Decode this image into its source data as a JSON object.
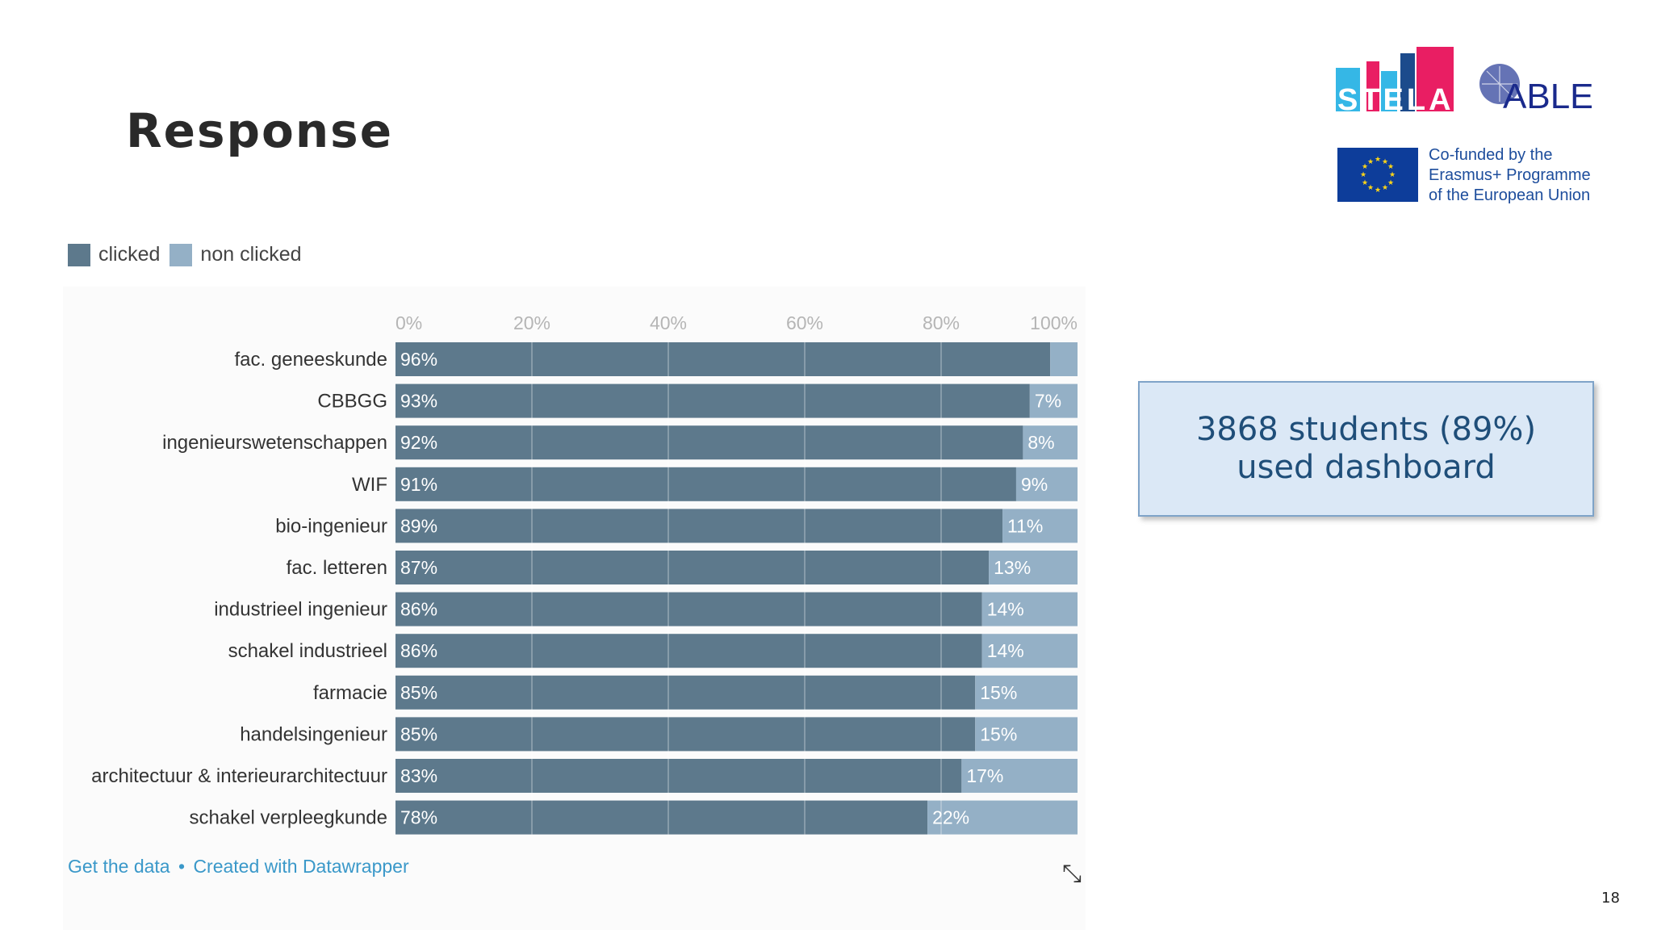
{
  "slide": {
    "title": "Response",
    "page_number": "18"
  },
  "callout": {
    "line1": "3868 students (89%)",
    "line2": "used dashboard"
  },
  "footer": {
    "get_data": "Get the data",
    "separator": "•",
    "created_with": "Created with Datawrapper"
  },
  "logos": {
    "stela": "STELA",
    "able": "ABLE",
    "eu_text": [
      "Co-funded by the",
      "Erasmus+ Programme",
      "of the European Union"
    ]
  },
  "colors": {
    "clicked": "#5d798c",
    "non_clicked": "#94b0c6",
    "link": "#3a98c9",
    "callout_text": "#1f4e79"
  },
  "chart_data": {
    "type": "bar",
    "orientation": "horizontal",
    "stacked": true,
    "legend_position": "top-left",
    "xlim": [
      0,
      100
    ],
    "x_ticks": [
      "0%",
      "20%",
      "40%",
      "60%",
      "80%",
      "100%"
    ],
    "categories": [
      "fac. geneeskunde",
      "CBBGG",
      "ingenieurswetenschappen",
      "WIF",
      "bio-ingenieur",
      "fac. letteren",
      "industrieel ingenieur",
      "schakel industrieel",
      "farmacie",
      "handelsingenieur",
      "architectuur & interieurarchitectuur",
      "schakel verpleegkunde"
    ],
    "series": [
      {
        "name": "clicked",
        "values": [
          96,
          93,
          92,
          91,
          89,
          87,
          86,
          86,
          85,
          85,
          83,
          78
        ],
        "labels": [
          "96%",
          "93%",
          "92%",
          "91%",
          "89%",
          "87%",
          "86%",
          "86%",
          "85%",
          "85%",
          "83%",
          "78%"
        ]
      },
      {
        "name": "non clicked",
        "values": [
          4,
          7,
          8,
          9,
          11,
          13,
          14,
          14,
          15,
          15,
          17,
          22
        ],
        "labels": [
          "",
          "7%",
          "8%",
          "9%",
          "11%",
          "13%",
          "14%",
          "14%",
          "15%",
          "15%",
          "17%",
          "22%"
        ]
      }
    ]
  }
}
